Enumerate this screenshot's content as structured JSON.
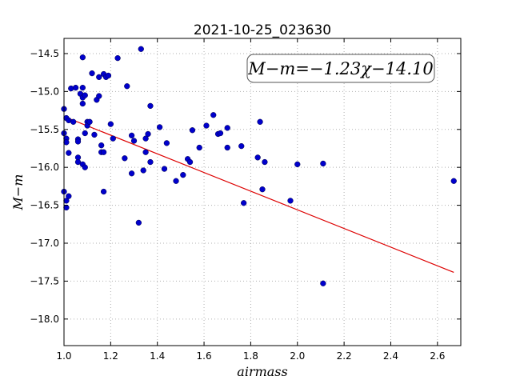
{
  "chart_data": {
    "type": "scatter",
    "title": "2021-10-25_023630",
    "xlabel": "airmass",
    "ylabel": "M−m",
    "xlim": [
      1.0,
      2.7
    ],
    "ylim": [
      -18.35,
      -14.3
    ],
    "y_inverted": true,
    "grid": true,
    "xticks": [
      1.0,
      1.2,
      1.4,
      1.6,
      1.8,
      2.0,
      2.2,
      2.4,
      2.6
    ],
    "xtick_labels": [
      "1.0",
      "1.2",
      "1.4",
      "1.6",
      "1.8",
      "2.0",
      "2.2",
      "2.4",
      "2.6"
    ],
    "yticks": [
      -14.5,
      -15.0,
      -15.5,
      -16.0,
      -16.5,
      -17.0,
      -17.5,
      -18.0
    ],
    "ytick_labels": [
      "−14.5",
      "−15.0",
      "−15.5",
      "−16.0",
      "−16.5",
      "−17.0",
      "−17.5",
      "−18.0"
    ],
    "annotation": "M−m=−1.23χ−14.10",
    "colors": {
      "points": "#0000cc",
      "fit_line": "#dd0000"
    },
    "fit": {
      "slope": -1.23,
      "intercept": -14.1,
      "x_range": [
        1.0,
        2.67
      ]
    },
    "points": [
      [
        1.0,
        -15.23
      ],
      [
        1.0,
        -15.55
      ],
      [
        1.01,
        -15.62
      ],
      [
        1.01,
        -15.67
      ],
      [
        1.01,
        -15.35
      ],
      [
        1.0,
        -16.32
      ],
      [
        1.01,
        -16.44
      ],
      [
        1.01,
        -16.53
      ],
      [
        1.02,
        -15.38
      ],
      [
        1.02,
        -15.81
      ],
      [
        1.02,
        -16.38
      ],
      [
        1.03,
        -14.96
      ],
      [
        1.04,
        -15.4
      ],
      [
        1.05,
        -14.95
      ],
      [
        1.06,
        -15.63
      ],
      [
        1.06,
        -15.66
      ],
      [
        1.06,
        -15.87
      ],
      [
        1.06,
        -15.93
      ],
      [
        1.07,
        -15.03
      ],
      [
        1.08,
        -14.55
      ],
      [
        1.08,
        -14.95
      ],
      [
        1.08,
        -15.08
      ],
      [
        1.08,
        -15.16
      ],
      [
        1.08,
        -15.96
      ],
      [
        1.09,
        -15.05
      ],
      [
        1.09,
        -15.55
      ],
      [
        1.09,
        -16.0
      ],
      [
        1.1,
        -15.4
      ],
      [
        1.1,
        -15.45
      ],
      [
        1.11,
        -15.4
      ],
      [
        1.12,
        -14.76
      ],
      [
        1.13,
        -15.57
      ],
      [
        1.14,
        -15.11
      ],
      [
        1.15,
        -14.81
      ],
      [
        1.15,
        -15.06
      ],
      [
        1.16,
        -15.71
      ],
      [
        1.16,
        -15.8
      ],
      [
        1.17,
        -15.8
      ],
      [
        1.17,
        -16.32
      ],
      [
        1.17,
        -14.77
      ],
      [
        1.18,
        -14.81
      ],
      [
        1.19,
        -14.79
      ],
      [
        1.2,
        -15.43
      ],
      [
        1.21,
        -15.62
      ],
      [
        1.23,
        -14.56
      ],
      [
        1.26,
        -15.88
      ],
      [
        1.27,
        -14.93
      ],
      [
        1.29,
        -15.58
      ],
      [
        1.29,
        -16.08
      ],
      [
        1.3,
        -15.65
      ],
      [
        1.32,
        -16.73
      ],
      [
        1.33,
        -14.44
      ],
      [
        1.34,
        -16.04
      ],
      [
        1.35,
        -15.62
      ],
      [
        1.35,
        -15.8
      ],
      [
        1.36,
        -15.56
      ],
      [
        1.37,
        -15.93
      ],
      [
        1.37,
        -15.19
      ],
      [
        1.41,
        -15.47
      ],
      [
        1.43,
        -16.02
      ],
      [
        1.44,
        -15.68
      ],
      [
        1.48,
        -16.18
      ],
      [
        1.51,
        -16.1
      ],
      [
        1.53,
        -15.89
      ],
      [
        1.54,
        -15.93
      ],
      [
        1.55,
        -15.51
      ],
      [
        1.58,
        -15.74
      ],
      [
        1.61,
        -15.45
      ],
      [
        1.64,
        -15.31
      ],
      [
        1.66,
        -15.56
      ],
      [
        1.67,
        -15.55
      ],
      [
        1.7,
        -15.48
      ],
      [
        1.7,
        -15.74
      ],
      [
        1.76,
        -15.72
      ],
      [
        1.77,
        -16.47
      ],
      [
        1.83,
        -15.87
      ],
      [
        1.84,
        -15.4
      ],
      [
        1.85,
        -16.29
      ],
      [
        1.86,
        -15.93
      ],
      [
        1.97,
        -16.44
      ],
      [
        2.0,
        -15.96
      ],
      [
        2.11,
        -17.53
      ],
      [
        2.11,
        -15.95
      ],
      [
        2.67,
        -16.18
      ]
    ]
  }
}
